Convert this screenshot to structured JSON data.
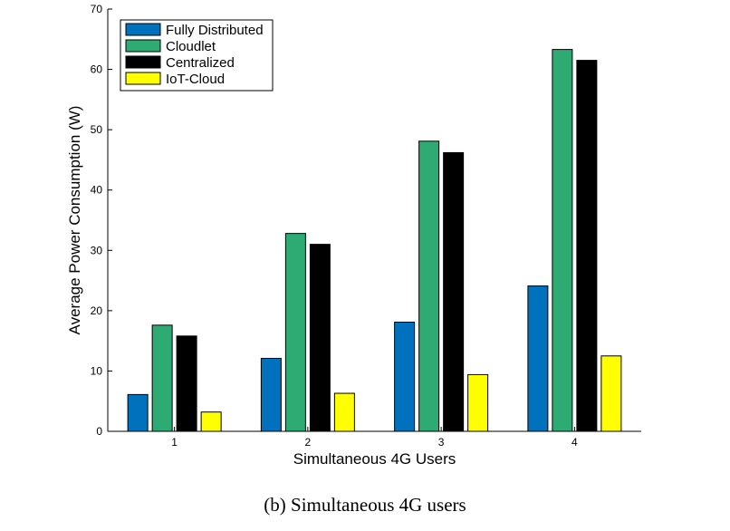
{
  "chart_data": {
    "type": "bar",
    "title": "",
    "xlabel": "Simultaneous 4G Users",
    "ylabel": "Average Power Consumption (W)",
    "categories": [
      "1",
      "2",
      "3",
      "4"
    ],
    "ylim": [
      0,
      70
    ],
    "yticks": [
      0,
      10,
      20,
      30,
      40,
      50,
      60,
      70
    ],
    "grid": false,
    "legend_position": "top-left",
    "series": [
      {
        "name": "Fully Distributed",
        "color": "#0072BD",
        "values": [
          6.1,
          12.1,
          18.1,
          24.1
        ]
      },
      {
        "name": "Cloudlet",
        "color": "#2EAB72",
        "values": [
          17.6,
          32.8,
          48.1,
          63.3
        ]
      },
      {
        "name": "Centralized",
        "color": "#000000",
        "values": [
          15.8,
          31.0,
          46.2,
          61.5
        ]
      },
      {
        "name": "IoT-Cloud",
        "color": "#FFFF00",
        "values": [
          3.2,
          6.3,
          9.4,
          12.5
        ]
      }
    ]
  },
  "caption": "(b) Simultaneous 4G users"
}
